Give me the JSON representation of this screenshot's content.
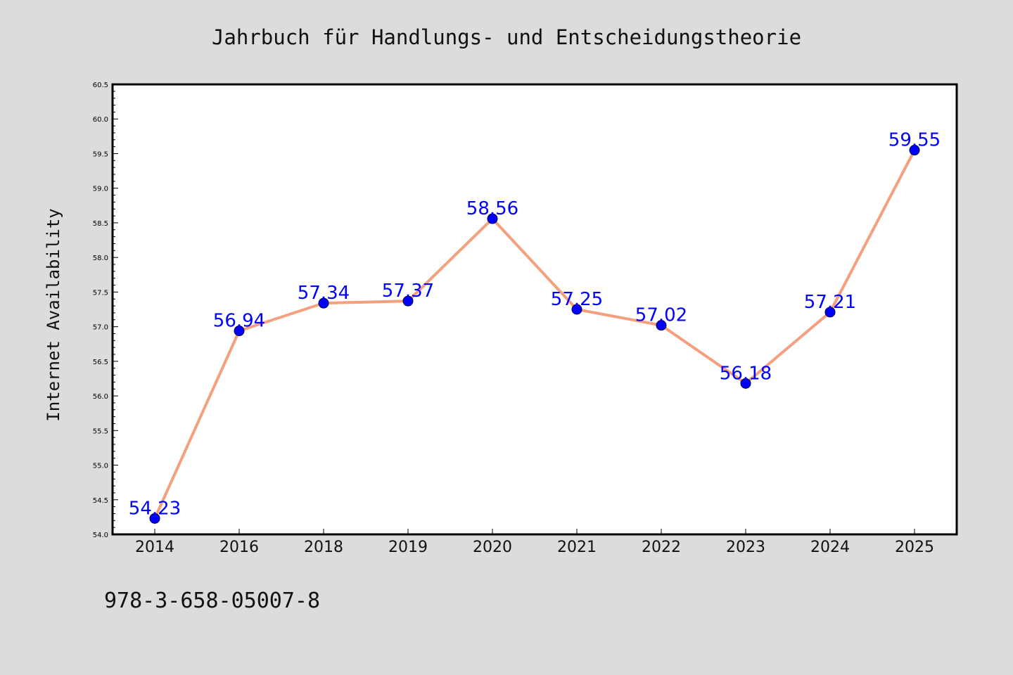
{
  "chart_data": {
    "type": "line",
    "title": "Jahrbuch für Handlungs- und Entscheidungstheorie",
    "xlabel": "",
    "ylabel": "Internet Availability",
    "categories": [
      "2014",
      "2016",
      "2018",
      "2019",
      "2020",
      "2021",
      "2022",
      "2023",
      "2024",
      "2025"
    ],
    "series": [
      {
        "values": [
          54.23,
          56.94,
          57.34,
          57.37,
          58.56,
          57.25,
          57.02,
          56.18,
          57.21,
          59.55
        ],
        "data_labels": [
          "54.23",
          "56.94",
          "57.34",
          "57.37",
          "58.56",
          "57.25",
          "57.02",
          "56.18",
          "57.21",
          "59.55"
        ]
      }
    ],
    "ylim": [
      54.0,
      60.5
    ],
    "yticks": [
      54.0,
      54.5,
      55.0,
      55.5,
      56.0,
      56.5,
      57.0,
      57.5,
      58.0,
      58.5,
      59.0,
      59.5,
      60.0,
      60.5
    ],
    "ytick_labels": [
      "54.0",
      "54.5",
      "55.0",
      "55.5",
      "56.0",
      "56.5",
      "57.0",
      "57.5",
      "58.0",
      "58.5",
      "59.0",
      "59.5",
      "60.0",
      "60.5"
    ],
    "grid": false,
    "legend": "none",
    "line_color": "#f4a07e",
    "marker_color": "#0000ff",
    "label_color": "#0000ff",
    "background_color": "#dcdcdc",
    "plot_background_color": "#ffffff"
  },
  "footer": {
    "isbn": "978-3-658-05007-8"
  }
}
